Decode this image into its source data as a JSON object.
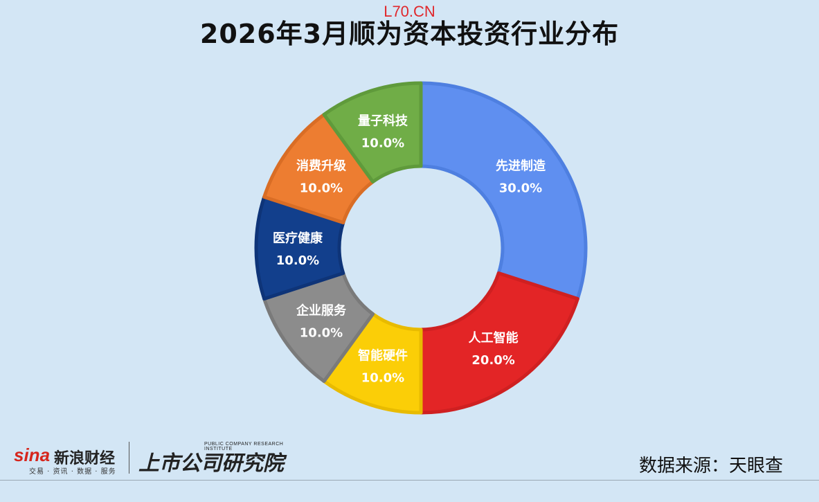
{
  "watermark": "L70.CN",
  "title": "2026年3月顺为资本投资行业分布",
  "source": "数据来源：天眼查",
  "logos": {
    "sina_mark": "sina",
    "sina_name": "新浪财经",
    "sina_tagline": "交易 · 资讯 · 数据 · 服务",
    "research_en": "PUBLIC COMPANY RESEARCH INSTITUTE",
    "research_cn": "上市公司研究院"
  },
  "chart_data": {
    "type": "pie",
    "donut": true,
    "categories": [
      "先进制造",
      "人工智能",
      "智能硬件",
      "企业服务",
      "医疗健康",
      "消费升级",
      "量子科技"
    ],
    "values": [
      30.0,
      20.0,
      10.0,
      10.0,
      10.0,
      10.0,
      10.0
    ],
    "value_labels": [
      "30.0%",
      "20.0%",
      "10.0%",
      "10.0%",
      "10.0%",
      "10.0%",
      "10.0%"
    ],
    "colors": [
      "#5f8ff0",
      "#e32526",
      "#fbce07",
      "#8c8c8c",
      "#123f8c",
      "#ed7d31",
      "#70ad47"
    ],
    "border_colors": [
      "#4e7fe0",
      "#cf2021",
      "#e8bb00",
      "#7a7a7a",
      "#0e3478",
      "#d96d25",
      "#5f9a3b"
    ],
    "start": "top",
    "direction": "clockwise",
    "legend": "none"
  }
}
